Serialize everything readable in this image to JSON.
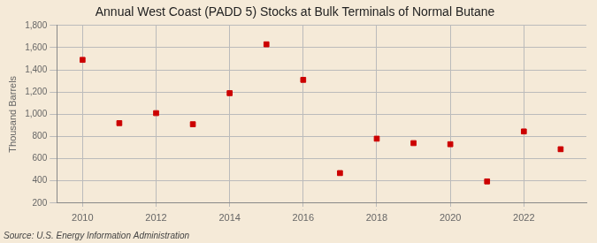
{
  "chart_data": {
    "type": "scatter",
    "title": "Annual West Coast (PADD 5) Stocks at Bulk Terminals of Normal Butane",
    "ylabel": "Thousand Barrels",
    "source": "Source: U.S. Energy Information Administration",
    "x": [
      2010,
      2011,
      2012,
      2013,
      2014,
      2015,
      2016,
      2017,
      2018,
      2019,
      2020,
      2021,
      2022,
      2023
    ],
    "values": [
      1490,
      920,
      1010,
      910,
      1190,
      1630,
      1310,
      470,
      780,
      740,
      730,
      395,
      845,
      685
    ],
    "color": "#cc0000",
    "marker": "square",
    "xlim": [
      2009.3,
      2023.7
    ],
    "xticks": [
      2010,
      2012,
      2014,
      2016,
      2018,
      2020,
      2022
    ],
    "ylim": [
      200,
      1800
    ],
    "yticks": [
      200,
      400,
      600,
      {
        "value": 800,
        "label": "800"
      },
      {
        "value": 1000,
        "label": "1,000"
      },
      {
        "value": 1200,
        "label": "1,200"
      },
      {
        "value": 1400,
        "label": "1,400"
      },
      {
        "value": 1600,
        "label": "1,600"
      },
      {
        "value": 1800,
        "label": "1,800"
      }
    ],
    "grid": true
  }
}
